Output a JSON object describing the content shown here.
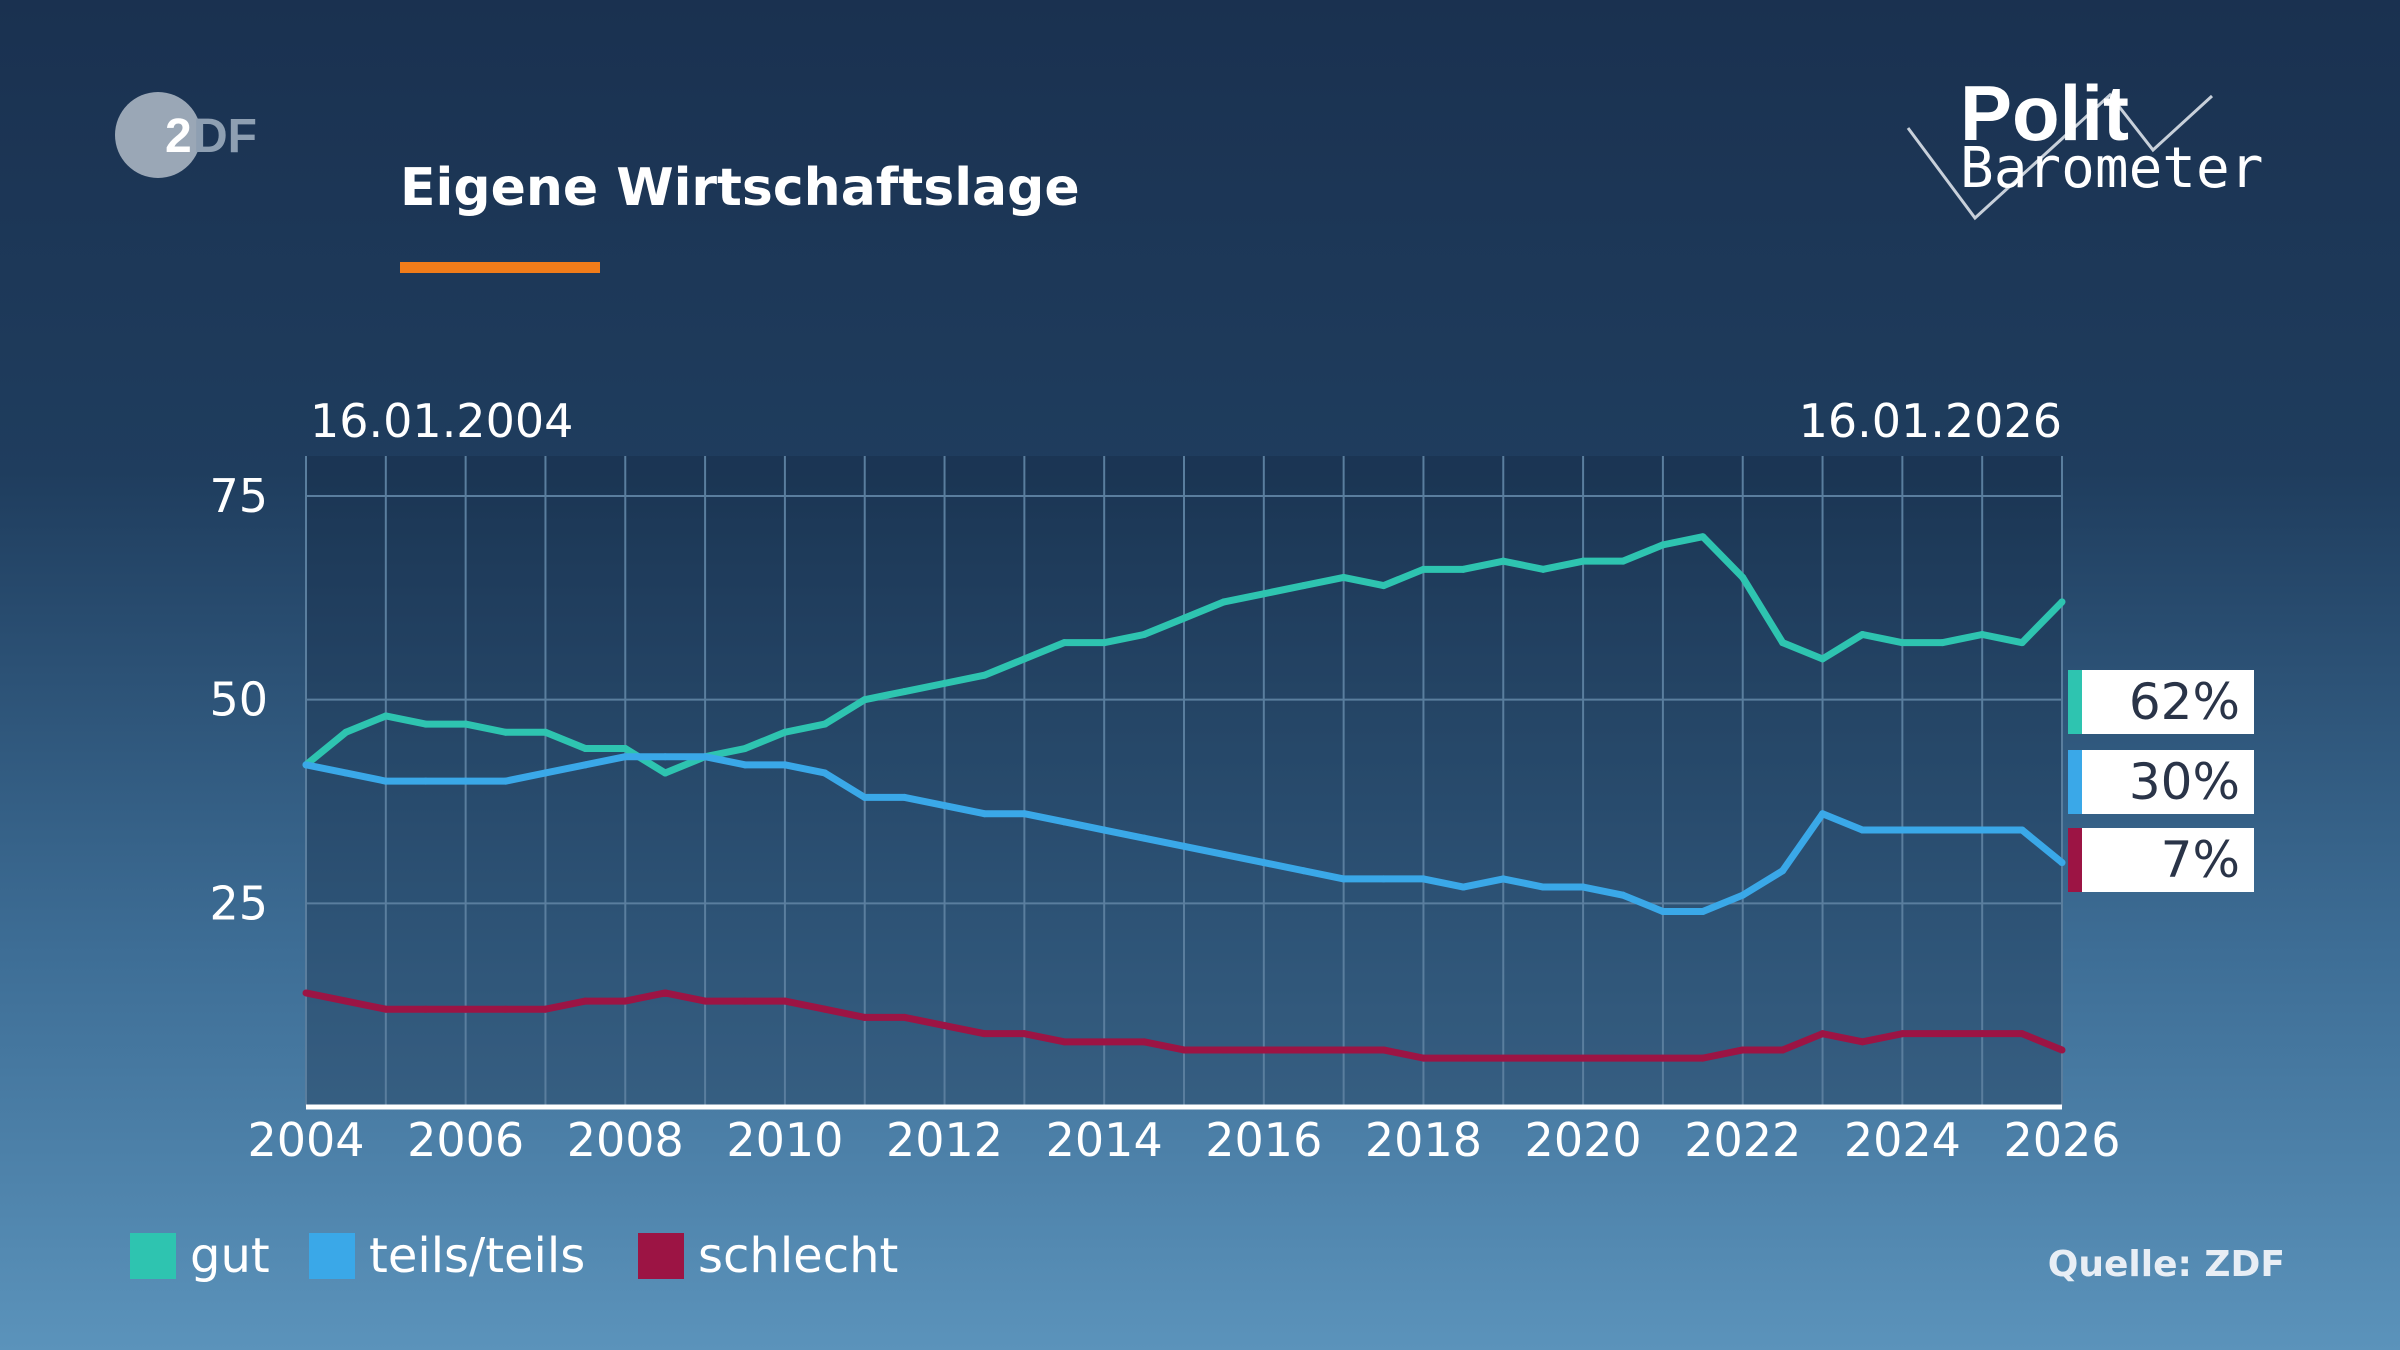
{
  "header": {
    "title": "Eigene Wirtschaftslage",
    "accent_color": "#f07c1a",
    "logo_left": "ZDF",
    "logo_right": [
      "Polit",
      "Barometer"
    ]
  },
  "date_range": {
    "start": "16.01.2004",
    "end": "16.01.2026"
  },
  "latest_values": [
    {
      "series": "gut",
      "label": "62%",
      "color": "#2ec4b0"
    },
    {
      "series": "teils/teils",
      "label": "30%",
      "color": "#3aa8e8"
    },
    {
      "series": "schlecht",
      "label": "7%",
      "color": "#9c1444"
    }
  ],
  "legend": [
    {
      "label": "gut",
      "color": "#2ec4b0"
    },
    {
      "label": "teils/teils",
      "color": "#3aa8e8"
    },
    {
      "label": "schlecht",
      "color": "#9c1444"
    }
  ],
  "source": "Quelle: ZDF",
  "chart_data": {
    "type": "line",
    "title": "Eigene Wirtschaftslage",
    "xlabel": "",
    "ylabel": "",
    "xlim": [
      2004,
      2026
    ],
    "ylim": [
      0,
      75
    ],
    "x_ticks": [
      "2004",
      "2006",
      "2008",
      "2010",
      "2012",
      "2014",
      "2016",
      "2018",
      "2020",
      "2022",
      "2024",
      "2026"
    ],
    "y_ticks": [
      "25",
      "50",
      "75"
    ],
    "grid": true,
    "legend_position": "bottom-left",
    "x": [
      2004,
      2004.5,
      2005,
      2005.5,
      2006,
      2006.5,
      2007,
      2007.5,
      2008,
      2008.5,
      2009,
      2009.5,
      2010,
      2010.5,
      2011,
      2011.5,
      2012,
      2012.5,
      2013,
      2013.5,
      2014,
      2014.5,
      2015,
      2015.5,
      2016,
      2016.5,
      2017,
      2017.5,
      2018,
      2018.5,
      2019,
      2019.5,
      2020,
      2020.5,
      2021,
      2021.5,
      2022,
      2022.5,
      2023,
      2023.5,
      2024,
      2024.5,
      2025,
      2025.5,
      2026
    ],
    "series": [
      {
        "name": "gut",
        "color": "#2ec4b0",
        "values": [
          42,
          46,
          48,
          47,
          47,
          46,
          46,
          44,
          44,
          41,
          43,
          44,
          46,
          47,
          50,
          51,
          52,
          53,
          55,
          57,
          57,
          58,
          60,
          62,
          63,
          64,
          65,
          64,
          66,
          66,
          67,
          66,
          67,
          67,
          69,
          70,
          65,
          57,
          55,
          58,
          57,
          57,
          58,
          57,
          62
        ]
      },
      {
        "name": "teils/teils",
        "color": "#3aa8e8",
        "values": [
          42,
          41,
          40,
          40,
          40,
          40,
          41,
          42,
          43,
          43,
          43,
          42,
          42,
          41,
          38,
          38,
          37,
          36,
          36,
          35,
          34,
          33,
          32,
          31,
          30,
          29,
          28,
          28,
          28,
          27,
          28,
          27,
          27,
          26,
          24,
          24,
          26,
          29,
          36,
          34,
          34,
          34,
          34,
          34,
          30
        ]
      },
      {
        "name": "schlecht",
        "color": "#9c1444",
        "values": [
          14,
          13,
          12,
          12,
          12,
          12,
          12,
          13,
          13,
          14,
          13,
          13,
          13,
          12,
          11,
          11,
          10,
          9,
          9,
          8,
          8,
          8,
          7,
          7,
          7,
          7,
          7,
          7,
          6,
          6,
          6,
          6,
          6,
          6,
          6,
          6,
          7,
          7,
          9,
          8,
          9,
          9,
          9,
          9,
          7
        ]
      }
    ]
  }
}
